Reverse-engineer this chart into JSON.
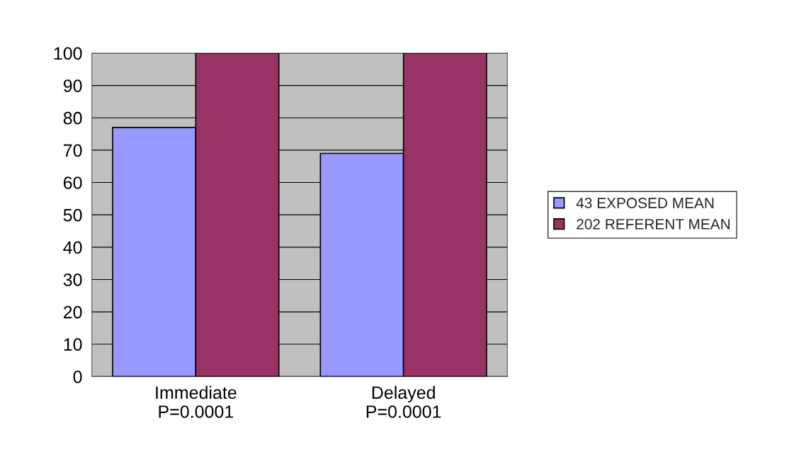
{
  "chart_data": {
    "type": "bar",
    "categories": [
      "Immediate\nP=0.0001",
      "Delayed\nP=0.0001"
    ],
    "series": [
      {
        "name": "43 EXPOSED MEAN",
        "color": "#9999ff",
        "values": [
          77,
          69
        ]
      },
      {
        "name": "202 REFERENT MEAN",
        "color": "#993366",
        "values": [
          100,
          100
        ]
      }
    ],
    "ylim": [
      0,
      100
    ],
    "yticks": [
      0,
      10,
      20,
      30,
      40,
      50,
      60,
      70,
      80,
      90,
      100
    ],
    "grid": "y",
    "legend": "right"
  }
}
